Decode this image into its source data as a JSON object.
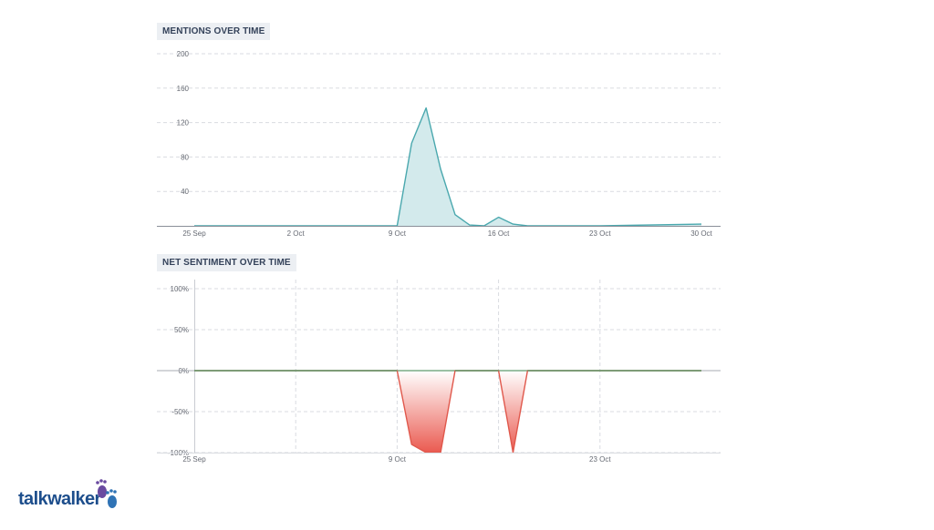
{
  "chart_data": [
    {
      "type": "area",
      "title": "MENTIONS OVER TIME",
      "x_tick_labels": [
        "25 Sep",
        "2 Oct",
        "9 Oct",
        "16 Oct",
        "23 Oct",
        "30 Oct"
      ],
      "y_tick_labels": [
        "40",
        "80",
        "120",
        "160",
        "200"
      ],
      "ylim": [
        0,
        200
      ],
      "xlim": [
        "2023-09-25",
        "2023-10-30"
      ],
      "grid": "horizontal dashed",
      "color": "#4aa8ae",
      "fill": "#d3eaec",
      "x": [
        "2023-09-25",
        "2023-10-02",
        "2023-10-09",
        "2023-10-10",
        "2023-10-11",
        "2023-10-12",
        "2023-10-13",
        "2023-10-14",
        "2023-10-15",
        "2023-10-16",
        "2023-10-17",
        "2023-10-18",
        "2023-10-23",
        "2023-10-30"
      ],
      "values": [
        0,
        0,
        0,
        96,
        137,
        66,
        13,
        1,
        0,
        10,
        2,
        0,
        0,
        2
      ]
    },
    {
      "type": "area",
      "title": "NET SENTIMENT OVER TIME",
      "x_tick_labels": [
        "25 Sep",
        "9 Oct",
        "23 Oct"
      ],
      "y_tick_labels": [
        "100%",
        "50%",
        "0%",
        "-50%",
        "-100%"
      ],
      "ylim": [
        -100,
        100
      ],
      "xlim": [
        "2023-09-25",
        "2023-10-30"
      ],
      "grid": "both dashed",
      "color": "#e0584c",
      "zero_line_color": "#5f9b6e",
      "x": [
        "2023-09-25",
        "2023-10-09",
        "2023-10-10",
        "2023-10-11",
        "2023-10-12",
        "2023-10-13",
        "2023-10-14",
        "2023-10-15",
        "2023-10-16",
        "2023-10-17",
        "2023-10-18",
        "2023-10-30"
      ],
      "values": [
        0,
        0,
        -90,
        -100,
        -100,
        0,
        0,
        0,
        0,
        -100,
        0,
        0
      ]
    }
  ],
  "branding": {
    "logo_text": "talkwalker",
    "logo_name": "talkwalker-logo"
  }
}
